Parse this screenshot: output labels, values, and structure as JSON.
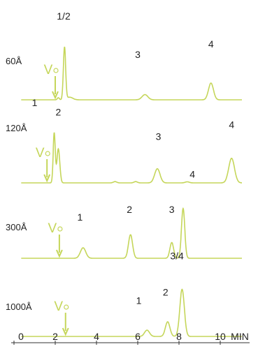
{
  "chart_data": {
    "type": "line",
    "colors": {
      "trace": "#c5d65a",
      "text": "#222222",
      "axis": "#333333"
    },
    "x_axis": {
      "unit_label": "MIN",
      "range": [
        0,
        11.5
      ],
      "ticks": [
        0,
        2,
        4,
        6,
        8,
        10
      ],
      "tick_labels": [
        "0",
        "2",
        "4",
        "6",
        "8",
        "10"
      ]
    },
    "shared_label": "1/2",
    "panels": [
      {
        "label": "60Å",
        "v0_marker": {
          "label": "V",
          "x": 2.0
        },
        "height_scale": 1,
        "peaks": [
          {
            "x": 2.15,
            "height": 0.04,
            "width": 0.05
          },
          {
            "x": 2.45,
            "height": 1.0,
            "width": 0.055
          },
          {
            "x": 2.7,
            "height": 0.05,
            "width": 0.15
          },
          {
            "x": 6.35,
            "height": 0.1,
            "width": 0.14
          },
          {
            "x": 9.55,
            "height": 0.32,
            "width": 0.12
          }
        ],
        "annotations": [
          {
            "text": "1",
            "x": 1.0,
            "level": -0.12
          },
          {
            "text": "2",
            "x": 2.15,
            "level": -0.3
          },
          {
            "text": "3",
            "x": 6.0,
            "level": 0.8
          },
          {
            "text": "4",
            "x": 9.55,
            "level": 1.0
          }
        ]
      },
      {
        "label": "120Å",
        "v0_marker": {
          "label": "V",
          "x": 1.6
        },
        "height_scale": 1,
        "peaks": [
          {
            "x": 1.95,
            "height": 0.95,
            "width": 0.05
          },
          {
            "x": 2.15,
            "height": 0.65,
            "width": 0.07
          },
          {
            "x": 4.9,
            "height": 0.025,
            "width": 0.08
          },
          {
            "x": 5.9,
            "height": 0.025,
            "width": 0.08
          },
          {
            "x": 6.95,
            "height": 0.27,
            "width": 0.13
          },
          {
            "x": 8.4,
            "height": 0.02,
            "width": 0.1
          },
          {
            "x": 10.55,
            "height": 0.47,
            "width": 0.14
          }
        ],
        "annotations": [
          {
            "text": "3",
            "x": 7.0,
            "level": 0.82
          },
          {
            "text": "4",
            "x": 8.65,
            "level": 0.1
          },
          {
            "text": "4",
            "x": 10.55,
            "level": 1.05
          }
        ]
      },
      {
        "label": "300Å",
        "v0_marker": {
          "label": "V",
          "x": 2.2
        },
        "height_scale": 1,
        "peaks": [
          {
            "x": 3.35,
            "height": 0.2,
            "width": 0.13
          },
          {
            "x": 5.65,
            "height": 0.45,
            "width": 0.1
          },
          {
            "x": 7.65,
            "height": 0.3,
            "width": 0.09
          },
          {
            "x": 8.2,
            "height": 0.95,
            "width": 0.08
          }
        ],
        "annotations": [
          {
            "text": "1",
            "x": 3.2,
            "level": 0.72
          },
          {
            "text": "2",
            "x": 5.6,
            "level": 0.87
          },
          {
            "text": "3",
            "x": 7.65,
            "level": 0.87
          },
          {
            "text": "3/4",
            "x": 7.9,
            "level": -0.02
          }
        ]
      },
      {
        "label": "1000Å",
        "v0_marker": {
          "label": "V",
          "x": 2.5
        },
        "height_scale": 1,
        "peaks": [
          {
            "x": 6.45,
            "height": 0.12,
            "width": 0.12
          },
          {
            "x": 7.45,
            "height": 0.28,
            "width": 0.11
          },
          {
            "x": 8.15,
            "height": 0.9,
            "width": 0.11
          }
        ],
        "annotations": [
          {
            "text": "1",
            "x": 6.05,
            "level": 0.62
          },
          {
            "text": "2",
            "x": 7.35,
            "level": 0.78
          }
        ]
      }
    ]
  }
}
